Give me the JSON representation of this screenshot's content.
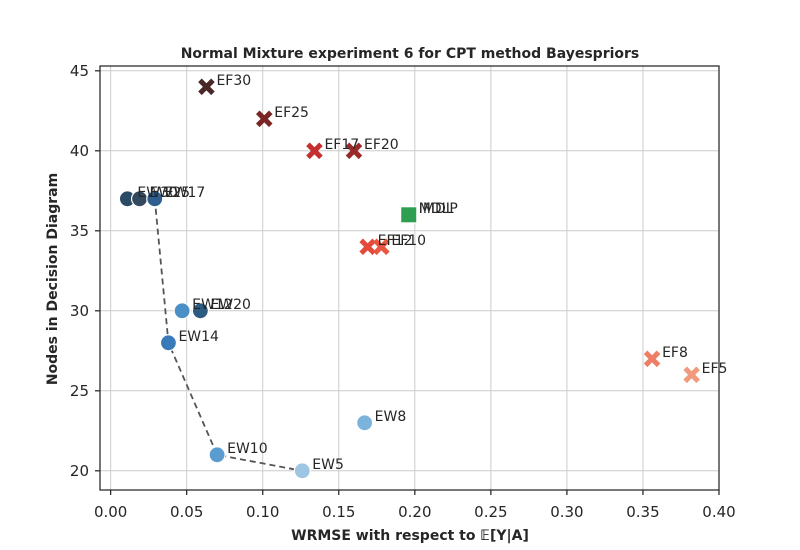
{
  "chart_data": {
    "type": "scatter",
    "title": "Normal Mixture experiment 6 for CPT method Bayespriors",
    "xlabel": "WRMSE with respect to 𝔼[Y|A]",
    "ylabel": "Nodes in Decision Diagram",
    "xlim": [
      -0.007,
      0.4
    ],
    "ylim": [
      18.8,
      45.3
    ],
    "xticks": [
      0.0,
      0.05,
      0.1,
      0.15,
      0.2,
      0.25,
      0.3,
      0.35,
      0.4
    ],
    "xtick_labels": [
      "0.00",
      "0.05",
      "0.10",
      "0.15",
      "0.20",
      "0.25",
      "0.30",
      "0.35",
      "0.40"
    ],
    "yticks": [
      20,
      25,
      30,
      35,
      40,
      45
    ],
    "ytick_labels": [
      "20",
      "25",
      "30",
      "35",
      "40",
      "45"
    ],
    "grid": true,
    "points": [
      {
        "label": "EW30",
        "x": 0.011,
        "y": 37,
        "marker": "circle",
        "color": "#2b4a66"
      },
      {
        "label": "EW25",
        "x": 0.019,
        "y": 37,
        "marker": "circle",
        "color": "#34495e"
      },
      {
        "label": "EW17",
        "x": 0.029,
        "y": 37,
        "marker": "circle",
        "color": "#2e5f8f"
      },
      {
        "label": "EW12",
        "x": 0.047,
        "y": 30,
        "marker": "circle",
        "color": "#4a8fc6"
      },
      {
        "label": "EW20",
        "x": 0.059,
        "y": 30,
        "marker": "circle",
        "color": "#2d5a80"
      },
      {
        "label": "EW14",
        "x": 0.038,
        "y": 28,
        "marker": "circle",
        "color": "#3a7ab8"
      },
      {
        "label": "EW10",
        "x": 0.07,
        "y": 21,
        "marker": "circle",
        "color": "#5a9bd0"
      },
      {
        "label": "EW5",
        "x": 0.126,
        "y": 20,
        "marker": "circle",
        "color": "#9ec6e3"
      },
      {
        "label": "EW8",
        "x": 0.167,
        "y": 23,
        "marker": "circle",
        "color": "#7bb3da"
      },
      {
        "label": "EF30",
        "x": 0.063,
        "y": 44,
        "marker": "x",
        "color": "#4a2828"
      },
      {
        "label": "EF25",
        "x": 0.101,
        "y": 42,
        "marker": "x",
        "color": "#7a2424"
      },
      {
        "label": "EF17",
        "x": 0.134,
        "y": 40,
        "marker": "x",
        "color": "#c42f2f"
      },
      {
        "label": "EF20",
        "x": 0.16,
        "y": 40,
        "marker": "x",
        "color": "#9a2a2a"
      },
      {
        "label": "EF12",
        "x": 0.169,
        "y": 34,
        "marker": "x",
        "color": "#e34a3a"
      },
      {
        "label": "EF10",
        "x": 0.178,
        "y": 34,
        "marker": "x",
        "color": "#e8563f"
      },
      {
        "label": "EF8",
        "x": 0.356,
        "y": 27,
        "marker": "x",
        "color": "#ee7e66"
      },
      {
        "label": "EF5",
        "x": 0.382,
        "y": 26,
        "marker": "x",
        "color": "#f29a7e"
      },
      {
        "label": "IMDL",
        "x": 0.196,
        "y": 36,
        "marker": "square",
        "color": "#2e8b4a"
      },
      {
        "label": "MDLP",
        "x": 0.196,
        "y": 36,
        "marker": "square",
        "color": "#2e9e50"
      }
    ],
    "pareto_line": {
      "color": "#555555",
      "style": "dashed",
      "x": [
        0.029,
        0.038,
        0.07,
        0.126
      ],
      "y": [
        37,
        28,
        21,
        20
      ]
    }
  }
}
